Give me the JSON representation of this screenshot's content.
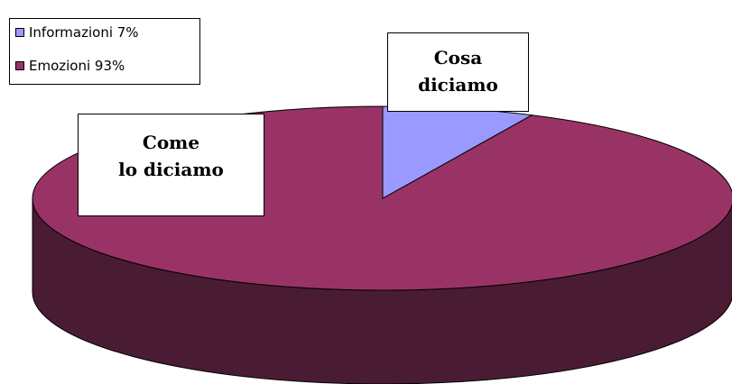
{
  "chart_data": {
    "type": "pie",
    "style": "3d",
    "slices": [
      {
        "label": "Informazioni",
        "value": 7,
        "color": "#9999ff"
      },
      {
        "label": "Emozioni",
        "value": 93,
        "color": "#993366"
      }
    ],
    "legend": {
      "position": "top-left",
      "entries": [
        "Informazioni 7%",
        "Emozioni 93%"
      ]
    },
    "annotations": [
      {
        "lines": [
          "Cosa",
          "diciamo"
        ]
      },
      {
        "lines": [
          "Come",
          "lo diciamo"
        ]
      }
    ],
    "side_color": "#4a1c33"
  }
}
